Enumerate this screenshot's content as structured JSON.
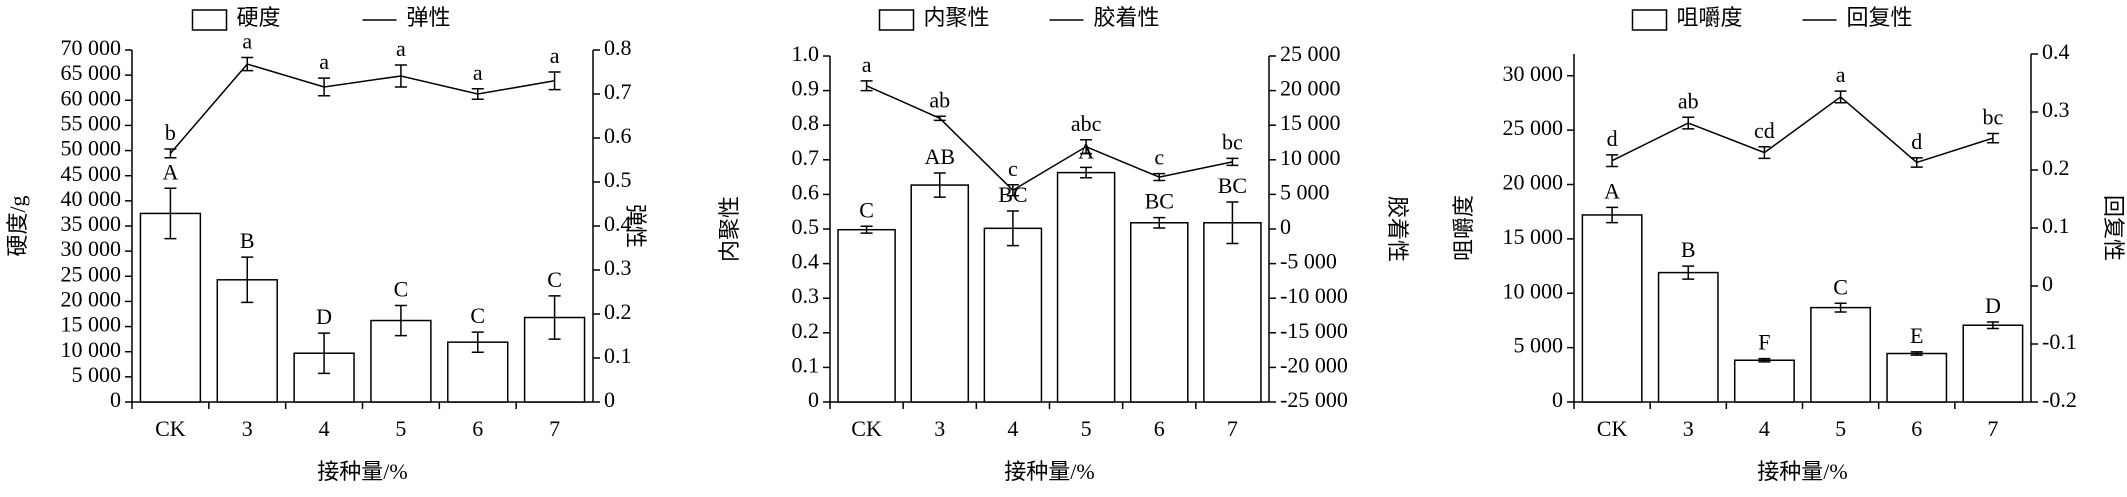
{
  "chart_data": [
    {
      "type": "combo",
      "xlabel": "接种量/%",
      "ylabel": "硬度/g",
      "y2label": "弹性",
      "categories": [
        "CK",
        "3",
        "4",
        "5",
        "6",
        "7"
      ],
      "ylim": [
        0,
        70000
      ],
      "yticks": [
        0,
        {
          "value": 5000,
          "label": "5 000"
        },
        {
          "value": 10000,
          "label": "10 000"
        },
        {
          "value": 15000,
          "label": "15 000"
        },
        {
          "value": 20000,
          "label": "20 000"
        },
        {
          "value": 25000,
          "label": "25 000"
        },
        {
          "value": 30000,
          "label": "30 000"
        },
        {
          "value": 35000,
          "label": "35 000"
        },
        {
          "value": 40000,
          "label": "40 000"
        },
        {
          "value": 45000,
          "label": "45 000"
        },
        {
          "value": 50000,
          "label": "50 000"
        },
        {
          "value": 55000,
          "label": "55 000"
        },
        {
          "value": 60000,
          "label": "60 000"
        },
        {
          "value": 65000,
          "label": "65 000"
        },
        {
          "value": 70000,
          "label": "70 000"
        }
      ],
      "y2lim": [
        0,
        0.8
      ],
      "y2ticks": [
        0,
        0.1,
        0.2,
        0.3,
        0.4,
        0.5,
        0.6,
        0.7,
        0.8
      ],
      "series": [
        {
          "name": "硬度",
          "kind": "bar",
          "color": "#ffffff",
          "edgecolor": "#000000",
          "values": [
            37500,
            24300,
            9700,
            16200,
            11900,
            16800
          ],
          "errors": [
            5000,
            4500,
            4000,
            3000,
            2000,
            4300
          ],
          "labels": [
            "A",
            "B",
            "D",
            "C",
            "C",
            "C"
          ]
        },
        {
          "name": "弹性",
          "kind": "line",
          "axis": "y2",
          "color": "#000000",
          "values": [
            0.565,
            0.768,
            0.716,
            0.741,
            0.7,
            0.73
          ],
          "errors": [
            0.01,
            0.015,
            0.02,
            0.025,
            0.012,
            0.02
          ],
          "labels": [
            "b",
            "a",
            "a",
            "a",
            "a",
            "a"
          ]
        }
      ]
    },
    {
      "type": "combo",
      "xlabel": "接种量/%",
      "ylabel": "内聚性",
      "y2label": "胶着性",
      "categories": [
        "CK",
        "3",
        "4",
        "5",
        "6",
        "7"
      ],
      "ylim": [
        0,
        1.0
      ],
      "yticks": [
        0,
        0.1,
        0.2,
        0.3,
        0.4,
        0.5,
        0.6,
        0.7,
        0.8,
        0.9,
        {
          "value": 1.0,
          "label": "1.0"
        }
      ],
      "y2lim": [
        -25000,
        25000
      ],
      "y2ticks": [
        {
          "value": -25000,
          "label": "-25 000"
        },
        {
          "value": -20000,
          "label": "-20 000"
        },
        {
          "value": -15000,
          "label": "-15 000"
        },
        {
          "value": -10000,
          "label": "-10 000"
        },
        {
          "value": -5000,
          "label": "-5 000"
        },
        0,
        {
          "value": 5000,
          "label": "5 000"
        },
        {
          "value": 10000,
          "label": "10 000"
        },
        {
          "value": 15000,
          "label": "15 000"
        },
        {
          "value": 20000,
          "label": "20 000"
        },
        {
          "value": 25000,
          "label": "25 000"
        }
      ],
      "series": [
        {
          "name": "内聚性",
          "kind": "bar",
          "color": "#ffffff",
          "edgecolor": "#000000",
          "values": [
            0.498,
            0.627,
            0.502,
            0.663,
            0.518,
            0.518
          ],
          "errors": [
            0.01,
            0.035,
            0.05,
            0.015,
            0.015,
            0.06
          ],
          "labels": [
            "C",
            "AB",
            "BC",
            "A",
            "BC",
            "BC"
          ]
        },
        {
          "name": "胶着性",
          "kind": "line",
          "axis": "y2",
          "color": "#000000",
          "values": [
            20700,
            16000,
            5600,
            11900,
            7500,
            9700
          ],
          "errors": [
            700,
            300,
            800,
            1000,
            500,
            500
          ],
          "labels": [
            "a",
            "ab",
            "c",
            "abc",
            "c",
            "bc"
          ]
        }
      ]
    },
    {
      "type": "combo",
      "xlabel": "接种量/%",
      "ylabel": "咀嚼度",
      "y2label": "回复性",
      "categories": [
        "CK",
        "3",
        "4",
        "5",
        "6",
        "7"
      ],
      "ylim": [
        0,
        32000
      ],
      "yticks": [
        0,
        {
          "value": 5000,
          "label": "5 000"
        },
        {
          "value": 10000,
          "label": "10 000"
        },
        {
          "value": 15000,
          "label": "15 000"
        },
        {
          "value": 20000,
          "label": "20 000"
        },
        {
          "value": 25000,
          "label": "25 000"
        },
        {
          "value": 30000,
          "label": "30 000"
        }
      ],
      "y2lim": [
        -0.2,
        0.4
      ],
      "y2ticks": [
        -0.2,
        -0.1,
        0,
        0.1,
        0.2,
        0.3,
        0.4
      ],
      "series": [
        {
          "name": "咀嚼度",
          "kind": "bar",
          "color": "#ffffff",
          "edgecolor": "#000000",
          "values": [
            17200,
            11900,
            3840,
            8680,
            4460,
            7060
          ],
          "errors": [
            700,
            600,
            150,
            400,
            150,
            300
          ],
          "labels": [
            "A",
            "B",
            "F",
            "C",
            "E",
            "D"
          ]
        },
        {
          "name": "回复性",
          "kind": "line",
          "axis": "y2",
          "color": "#000000",
          "values": [
            0.216,
            0.281,
            0.23,
            0.326,
            0.213,
            0.255
          ],
          "errors": [
            0.01,
            0.01,
            0.01,
            0.01,
            0.008,
            0.008
          ],
          "labels": [
            "d",
            "ab",
            "cd",
            "a",
            "d",
            "bc"
          ]
        }
      ]
    }
  ]
}
